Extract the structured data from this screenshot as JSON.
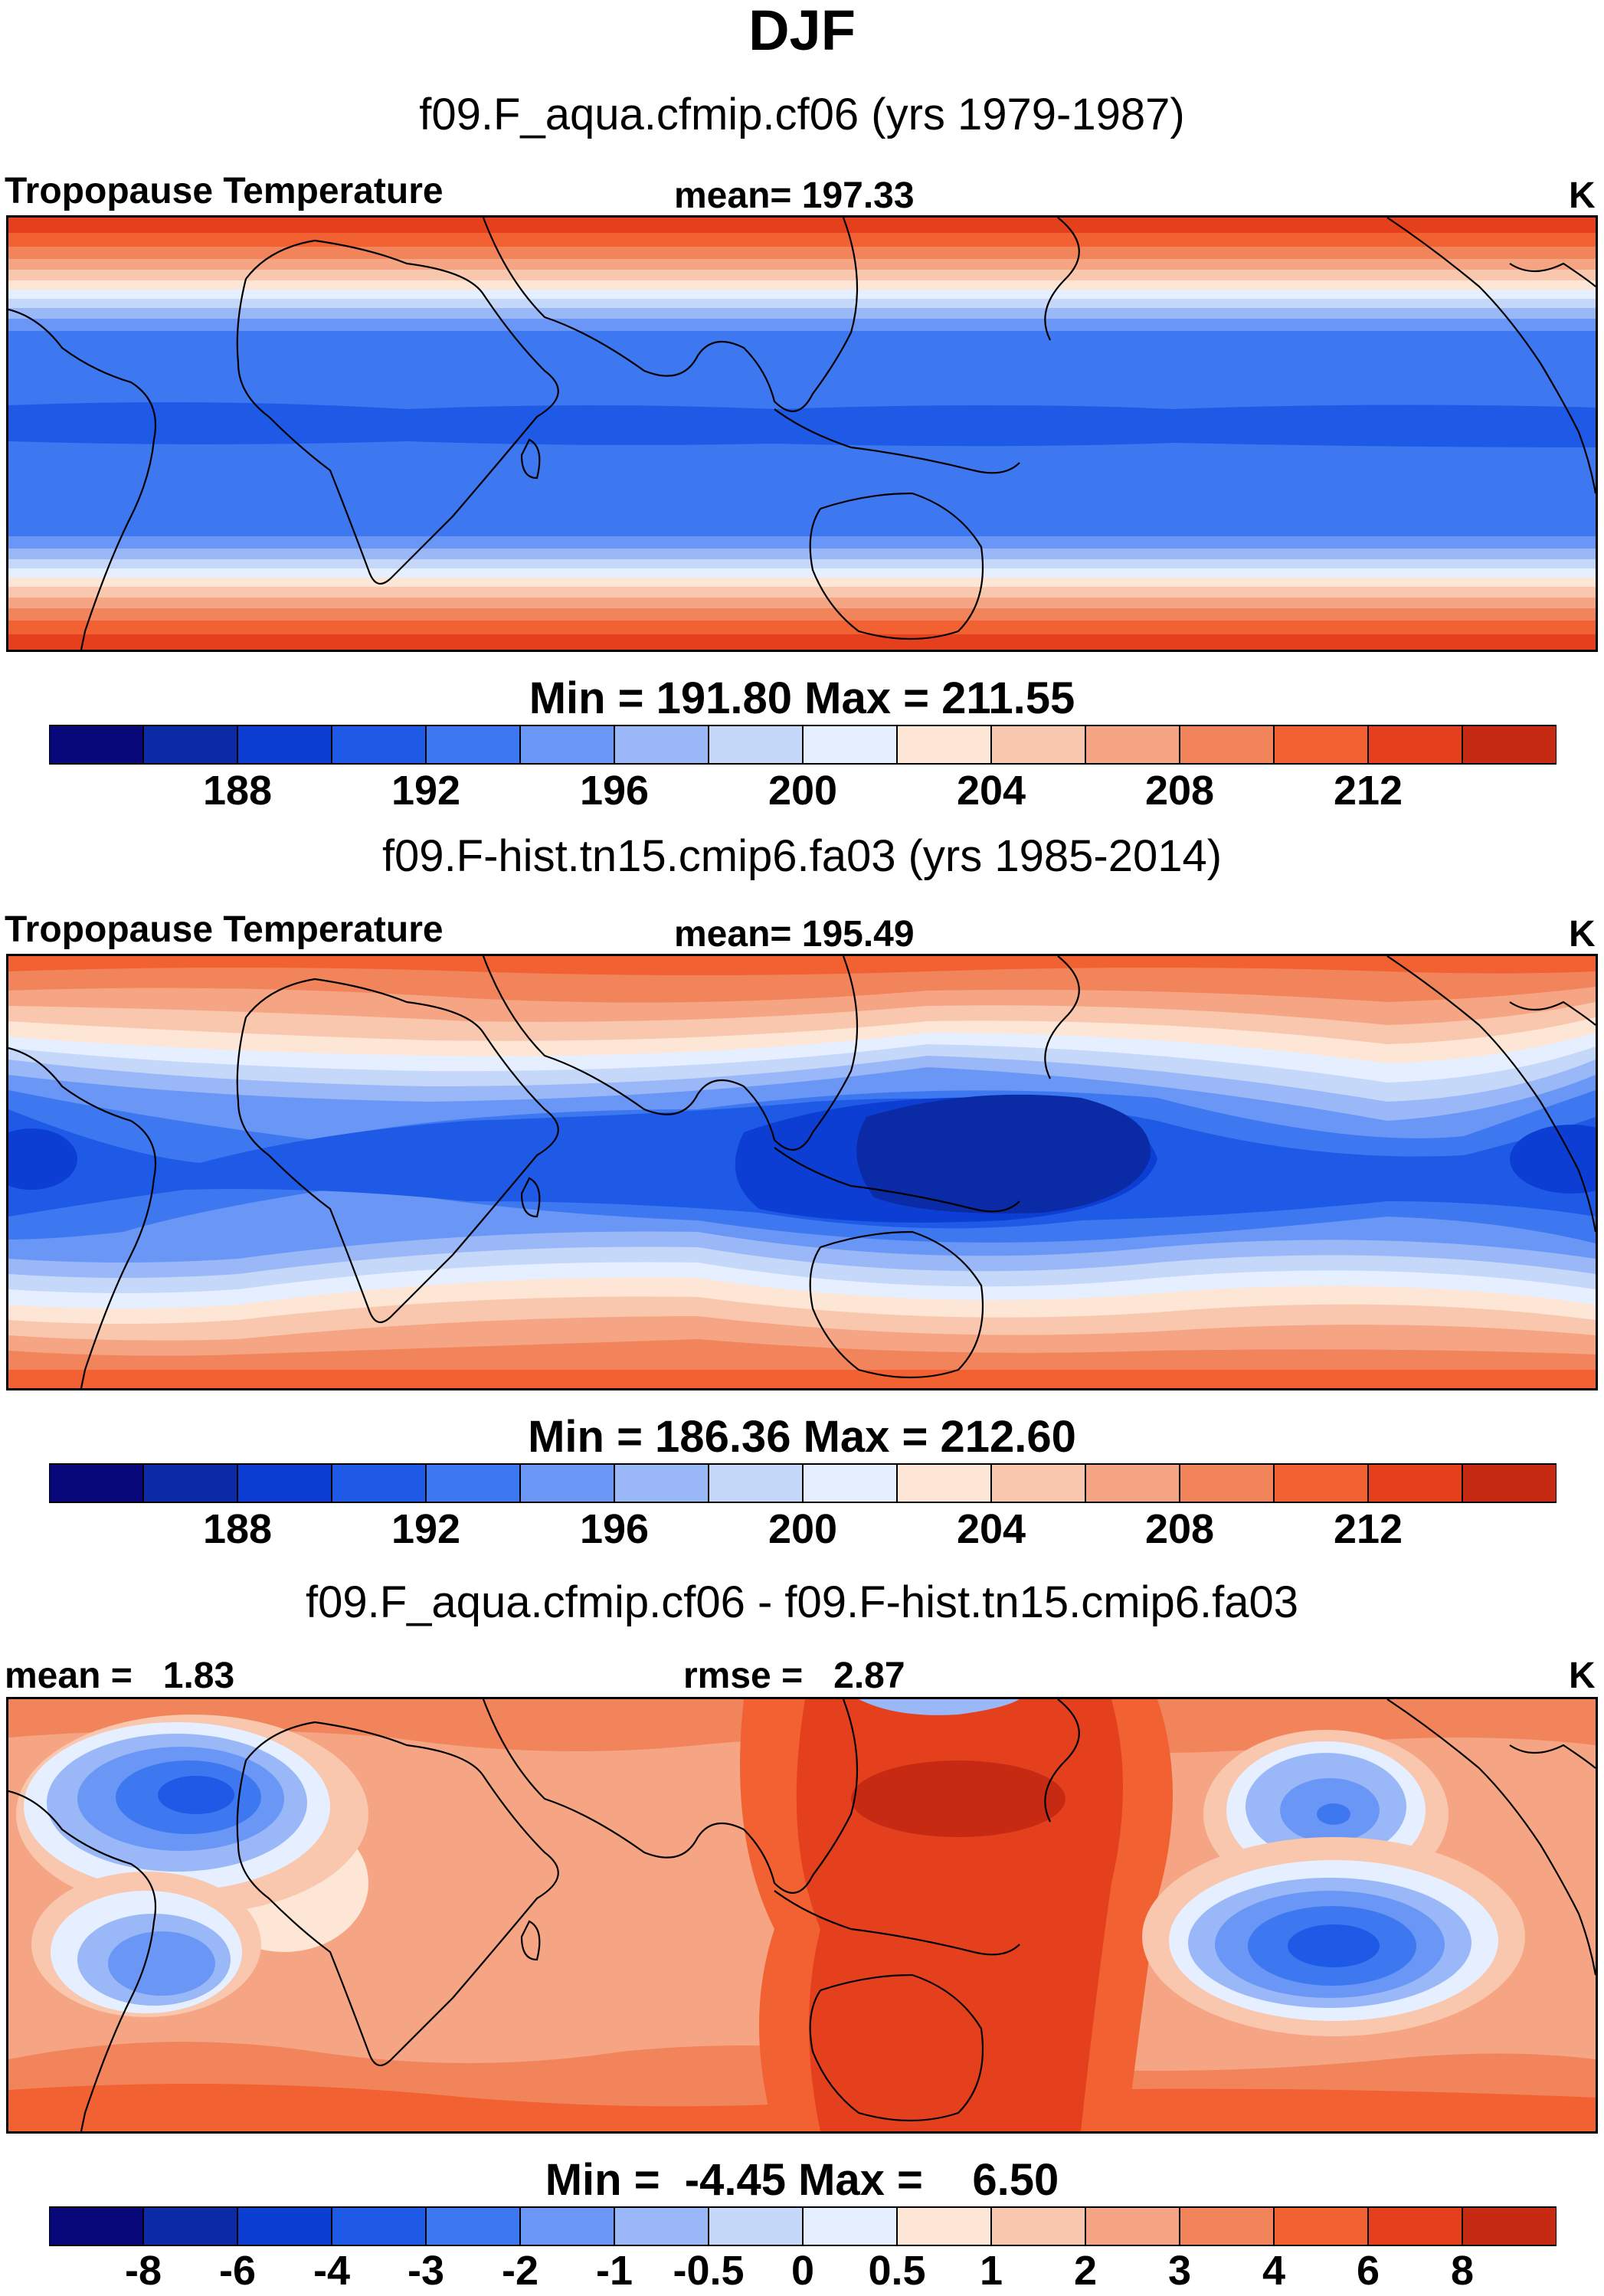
{
  "title": "DJF",
  "variable_label": "Tropopause Temperature",
  "units": "K",
  "panel_colors": [
    "#08087a",
    "#0a2aa6",
    "#0d3ed4",
    "#1e5ae6",
    "#3d78f0",
    "#6a97f5",
    "#9ab8f7",
    "#c6d8fa",
    "#e6efff",
    "#fde6d6",
    "#f9c7ad",
    "#f5a584",
    "#f2845c",
    "#f26132",
    "#e5401e",
    "#c62a12",
    "#8c0a04"
  ],
  "chart_data": [
    {
      "type": "heatmap",
      "name": "panel-1",
      "case_label": "f09.F_aqua.cfmip.cf06 (yrs 1979-1987)",
      "stat_label": "mean= 197.33",
      "mean": 197.33,
      "min": 191.8,
      "max": 211.55,
      "minmax_label": "Min = 191.80 Max = 211.55",
      "colorbar_ticks": [
        "188",
        "192",
        "196",
        "200",
        "204",
        "208",
        "212"
      ],
      "colorbar_levels": [
        186,
        188,
        190,
        192,
        194,
        196,
        198,
        200,
        202,
        204,
        206,
        208,
        210,
        212,
        214
      ],
      "field": "zonally-symmetric: ~212 K at poles, ~196 K in tropics, ~194 K band near 10N"
    },
    {
      "type": "heatmap",
      "name": "panel-2",
      "case_label": "f09.F-hist.tn15.cmip6.fa03 (yrs 1985-2014)",
      "stat_label": "mean= 195.49",
      "mean": 195.49,
      "min": 186.36,
      "max": 212.6,
      "minmax_label": "Min = 186.36 Max = 212.60",
      "colorbar_ticks": [
        "188",
        "192",
        "196",
        "200",
        "204",
        "208",
        "212"
      ],
      "colorbar_levels": [
        186,
        188,
        190,
        192,
        194,
        196,
        198,
        200,
        202,
        204,
        206,
        208,
        210,
        212,
        214
      ],
      "field": "coldest (~187 K) over west Pacific warm pool; tropical band ~192 K; poles ~210 K"
    },
    {
      "type": "heatmap",
      "name": "panel-3",
      "case_label": "f09.F_aqua.cfmip.cf06 - f09.F-hist.tn15.cmip6.fa03",
      "stat_label_left": "mean =   1.83",
      "stat_label_mid": "rmse =   2.87",
      "mean": 1.83,
      "rmse": 2.87,
      "min": -4.45,
      "max": 6.5,
      "minmax_label": "Min =  -4.45 Max =    6.50",
      "colorbar_ticks": [
        "-8",
        "-6",
        "-4",
        "-3",
        "-2",
        "-1",
        "-0.5",
        "0",
        "0.5",
        "1",
        "2",
        "3",
        "4",
        "6",
        "8"
      ],
      "colorbar_levels": [
        -8,
        -6,
        -4,
        -3,
        -2,
        -1,
        -0.5,
        0,
        0.5,
        1,
        2,
        3,
        4,
        6,
        8
      ],
      "field": "positive (up to 6.5 K) over west Pacific; negative lobes (~-4 K) over N/S Atlantic and eastern Pacific"
    }
  ]
}
